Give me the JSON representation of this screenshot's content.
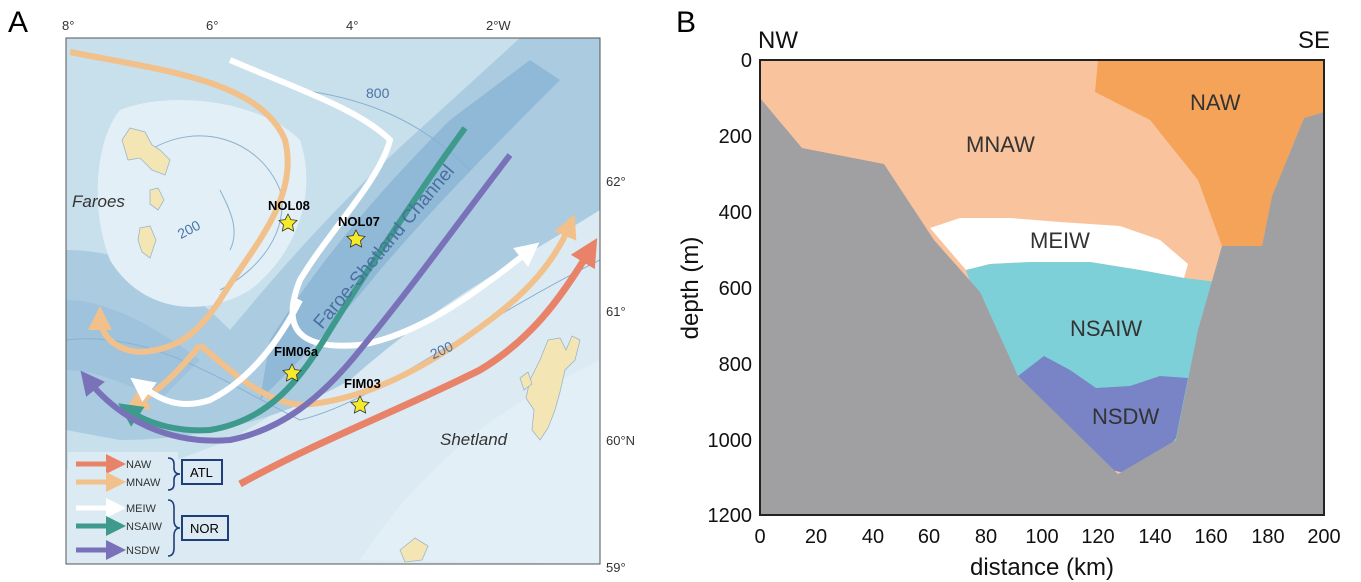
{
  "panel_a": {
    "label": "A",
    "lon_ticks": [
      "8°",
      "6°",
      "4°",
      "2°W"
    ],
    "lat_ticks": [
      "62°",
      "61°",
      "60°N",
      "59°"
    ],
    "places": {
      "faroes": "Faroes",
      "shetland": "Shetland",
      "channel": "Faroe-Shetland Channel"
    },
    "contours": {
      "c800": "800",
      "c200a": "200",
      "c200b": "200"
    },
    "stations": [
      "NOL08",
      "NOL07",
      "FIM06a",
      "FIM03"
    ],
    "legend": {
      "items": [
        {
          "name": "NAW",
          "color": "#e8836a"
        },
        {
          "name": "MNAW",
          "color": "#f2c08a"
        },
        {
          "name": "MEIW",
          "color": "#ffffff"
        },
        {
          "name": "NSAIW",
          "color": "#3e9a8c"
        },
        {
          "name": "NSDW",
          "color": "#7a72b8"
        }
      ],
      "groups": [
        "ATL",
        "NOR"
      ]
    }
  },
  "panel_b": {
    "label": "B",
    "left_label": "NW",
    "right_label": "SE",
    "xlabel": "distance (km)",
    "ylabel": "depth (m)",
    "xticks": [
      "0",
      "20",
      "40",
      "60",
      "80",
      "100",
      "120",
      "140",
      "160",
      "180",
      "200"
    ],
    "yticks": [
      "0",
      "200",
      "400",
      "600",
      "800",
      "1000",
      "1200"
    ],
    "water_masses": [
      {
        "name": "NAW",
        "color": "#f6a35a"
      },
      {
        "name": "MNAW",
        "color": "#f9c49d"
      },
      {
        "name": "MEIW",
        "color": "#ffffff"
      },
      {
        "name": "NSAIW",
        "color": "#7dd0d8"
      },
      {
        "name": "NSDW",
        "color": "#7884c6"
      }
    ],
    "seafloor_color": "#a0a0a2"
  }
}
